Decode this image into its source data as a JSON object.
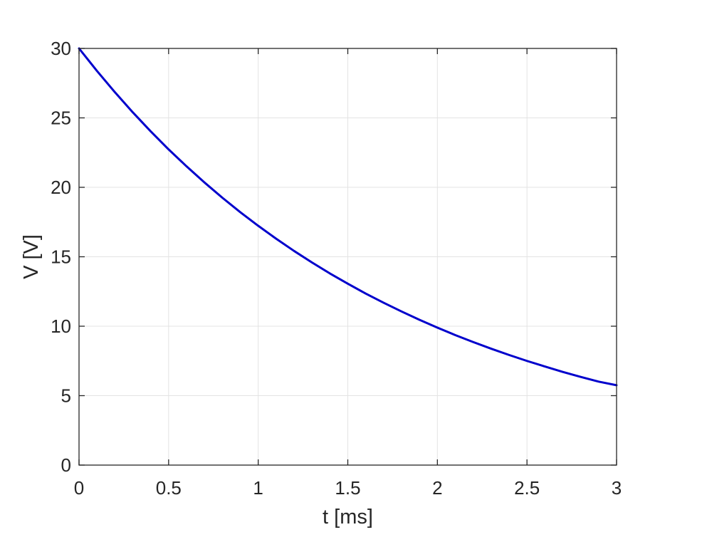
{
  "chart_data": {
    "type": "line",
    "title": "",
    "xlabel": "t [ms]",
    "ylabel": "V [V]",
    "xlim": [
      0,
      3
    ],
    "ylim": [
      0,
      30
    ],
    "xticks": [
      0,
      0.5,
      1,
      1.5,
      2,
      2.5,
      3
    ],
    "xtick_labels": [
      "0",
      "0.5",
      "1",
      "1.5",
      "2",
      "2.5",
      "3"
    ],
    "yticks": [
      0,
      5,
      10,
      15,
      20,
      25,
      30
    ],
    "ytick_labels": [
      "0",
      "5",
      "10",
      "15",
      "20",
      "25",
      "30"
    ],
    "grid": true,
    "legend": "none",
    "series": [
      {
        "color": "#0000cc",
        "x": [
          0,
          0.1,
          0.2,
          0.3,
          0.4,
          0.5,
          0.6,
          0.7,
          0.8,
          0.9,
          1.0,
          1.1,
          1.2,
          1.3,
          1.4,
          1.5,
          1.6,
          1.7,
          1.8,
          1.9,
          2.0,
          2.1,
          2.2,
          2.3,
          2.4,
          2.5,
          2.6,
          2.7,
          2.8,
          2.9,
          3.0
        ],
        "y": [
          30,
          28.38,
          26.85,
          25.4,
          24.03,
          22.73,
          21.51,
          20.35,
          19.25,
          18.21,
          17.23,
          16.3,
          15.42,
          14.59,
          13.8,
          13.06,
          12.35,
          11.69,
          11.06,
          10.46,
          9.9,
          9.36,
          8.86,
          8.38,
          7.93,
          7.5,
          7.1,
          6.71,
          6.35,
          6.01,
          5.75
        ]
      }
    ]
  }
}
